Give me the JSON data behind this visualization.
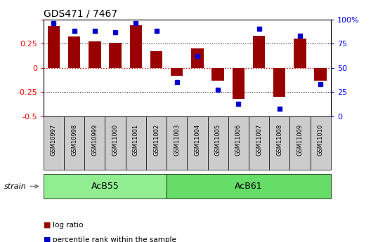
{
  "title": "GDS471 / 7467",
  "samples": [
    "GSM10997",
    "GSM10998",
    "GSM10999",
    "GSM11000",
    "GSM11001",
    "GSM11002",
    "GSM11003",
    "GSM11004",
    "GSM11005",
    "GSM11006",
    "GSM11007",
    "GSM11008",
    "GSM11009",
    "GSM11010"
  ],
  "log_ratio": [
    0.43,
    0.32,
    0.27,
    0.26,
    0.44,
    0.17,
    -0.08,
    0.2,
    -0.13,
    -0.32,
    0.33,
    -0.3,
    0.3,
    -0.13
  ],
  "percentile_rank": [
    96,
    88,
    88,
    87,
    96,
    88,
    35,
    62,
    27,
    13,
    90,
    8,
    83,
    33
  ],
  "groups": [
    {
      "label": "AcB55",
      "start": 0,
      "end": 5,
      "color": "#90ee90"
    },
    {
      "label": "AcB61",
      "start": 6,
      "end": 13,
      "color": "#66dd66"
    }
  ],
  "ylim": [
    -0.5,
    0.5
  ],
  "y2lim": [
    0,
    100
  ],
  "yticks": [
    -0.5,
    -0.25,
    0,
    0.25,
    0.5
  ],
  "y2ticks": [
    0,
    25,
    50,
    75,
    100
  ],
  "bar_color": "#990000",
  "dot_color": "#0000cc",
  "hline0_color": "#cc0000",
  "hline_color": "black",
  "bg_color": "white",
  "strain_label": "strain",
  "legend_items": [
    "log ratio",
    "percentile rank within the sample"
  ],
  "sample_label_bg": "#cccccc",
  "figsize": [
    5.38,
    3.45
  ],
  "dpi": 100
}
